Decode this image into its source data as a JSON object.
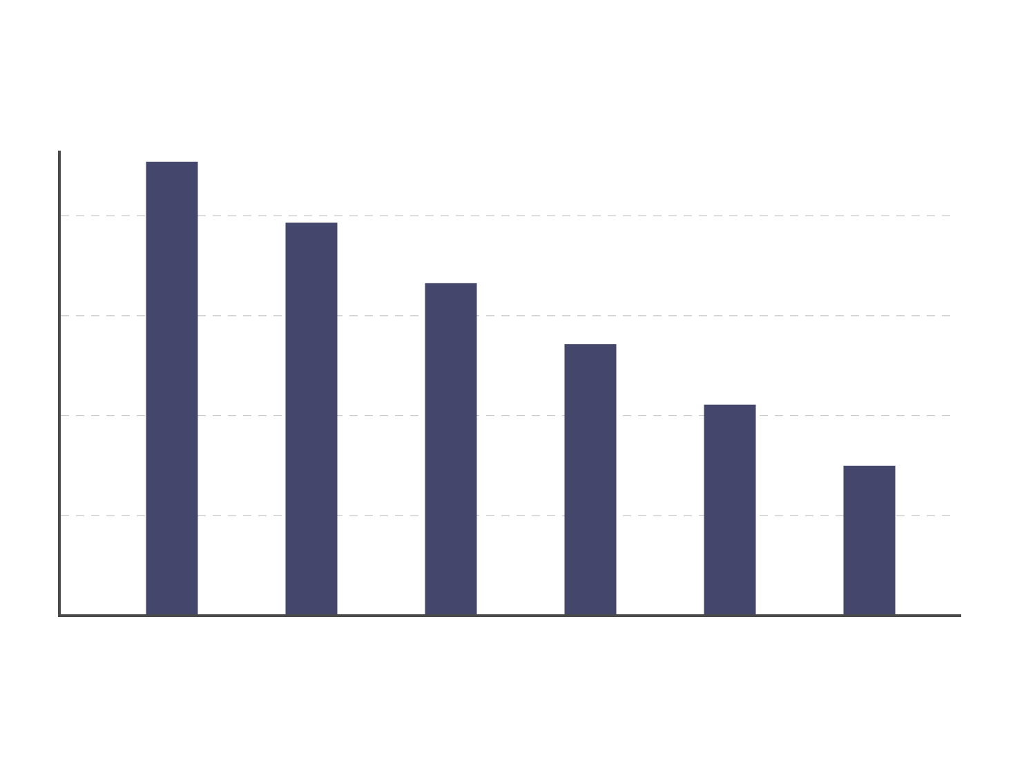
{
  "chart_data": {
    "type": "bar",
    "title": "",
    "xlabel": "",
    "ylabel": "",
    "values": [
      9.08,
      7.86,
      6.65,
      5.43,
      4.22,
      3.0
    ],
    "ylim": [
      0,
      9.3
    ],
    "grid": true,
    "legend": "none",
    "colors": {
      "bar": "#44476b",
      "axis": "#4a4a4a",
      "grid": "#c6c6c6",
      "background": "#ffffff"
    }
  }
}
